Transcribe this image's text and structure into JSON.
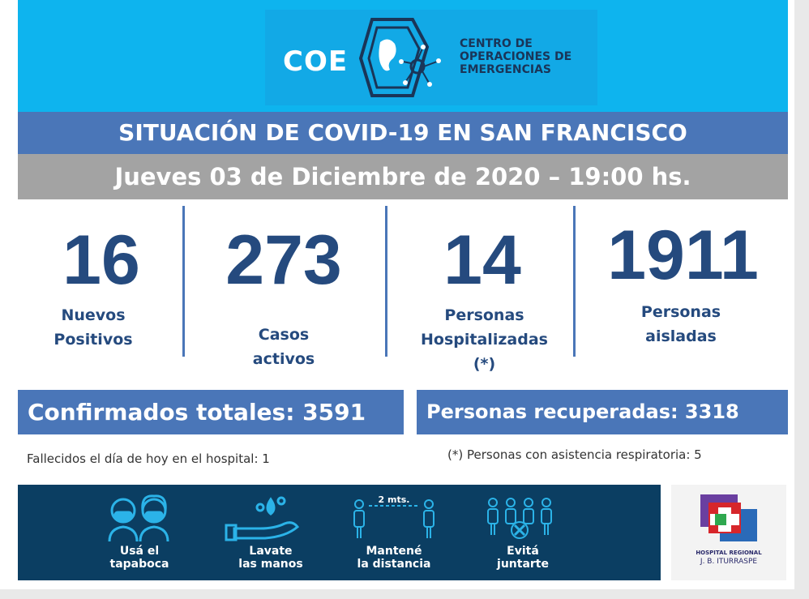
{
  "header": {
    "logo_text": "COE",
    "org_lines": [
      "CENTRO DE",
      "OPERACIONES DE",
      "EMERGENCIAS"
    ]
  },
  "title": "SITUACIÓN DE COVID-19 EN SAN FRANCISCO",
  "date": "Jueves 03 de Diciembre de 2020 – 19:00 hs.",
  "stats": [
    {
      "value": "16",
      "label_lines": [
        "Nuevos",
        "Positivos"
      ]
    },
    {
      "value": "273",
      "label_lines": [
        "Casos",
        "activos"
      ]
    },
    {
      "value": "14",
      "label_lines": [
        "Personas",
        "Hospitalizadas",
        "(*)"
      ]
    },
    {
      "value": "1911",
      "label_lines": [
        "Personas",
        "aisladas"
      ]
    }
  ],
  "totals": {
    "confirmados": "Confirmados totales: 3591",
    "recuperadas": "Personas recuperadas: 3318"
  },
  "notes": {
    "fallecidos": "Fallecidos el día de hoy en el hospital: 1",
    "respiratoria": "(*) Personas con asistencia respiratoria: 5"
  },
  "tips": [
    {
      "icon": "mask-icon",
      "lines": [
        "Usá el",
        "tapaboca"
      ]
    },
    {
      "icon": "wash-hands-icon",
      "lines": [
        "Lavate",
        "las manos"
      ]
    },
    {
      "icon": "distance-icon",
      "lines": [
        "Mantené",
        "la distancia"
      ],
      "distance_label": "2 mts."
    },
    {
      "icon": "no-gathering-icon",
      "lines": [
        "Evitá",
        "juntarte"
      ]
    }
  ],
  "hospital": {
    "line1": "HOSPITAL REGIONAL",
    "line2": "J. B. ITURRASPE"
  },
  "colors": {
    "header_blue": "#0eb4ee",
    "band_blue": "#4a76b8",
    "band_gray": "#a3a3a3",
    "number_navy": "#254a7e",
    "bottom_navy": "#0b3e62",
    "icon_cyan": "#2bb3e8"
  }
}
